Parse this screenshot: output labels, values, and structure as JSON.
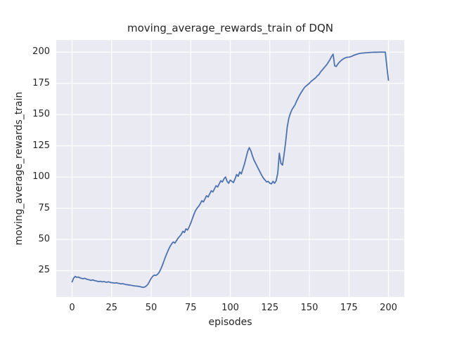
{
  "chart_data": {
    "type": "line",
    "title": "moving_average_rewards_train of DQN",
    "xlabel": "episodes",
    "ylabel": "moving_average_rewards_train",
    "x_ticks": [
      0,
      25,
      50,
      75,
      100,
      125,
      150,
      175,
      200
    ],
    "y_ticks": [
      25,
      50,
      75,
      100,
      125,
      150,
      175,
      200
    ],
    "xlim": [
      -10,
      210
    ],
    "ylim": [
      3.9,
      209.7
    ],
    "grid": true,
    "legend": "none",
    "colors": {
      "line": "#4C72B0",
      "axes_bg": "#EAEAF2",
      "grid": "#FFFFFF",
      "text": "#262626",
      "figure_bg": "#FFFFFF"
    },
    "series": [
      {
        "name": "moving_average_rewards_train",
        "x_start": 0,
        "x_step": 1,
        "values": [
          16.0,
          19.0,
          20.4,
          19.6,
          19.9,
          19.2,
          18.8,
          18.5,
          18.9,
          18.3,
          17.9,
          17.6,
          17.2,
          17.6,
          17.1,
          16.8,
          16.5,
          16.2,
          16.5,
          16.0,
          16.3,
          15.9,
          15.7,
          16.1,
          15.6,
          15.4,
          15.2,
          15.0,
          15.3,
          14.9,
          14.7,
          14.4,
          14.6,
          14.2,
          13.9,
          13.7,
          13.5,
          13.3,
          13.1,
          12.9,
          12.7,
          12.6,
          12.4,
          12.2,
          11.8,
          11.6,
          11.9,
          12.8,
          14.2,
          16.5,
          18.8,
          20.5,
          21.4,
          21.1,
          22.0,
          23.5,
          26.0,
          29.0,
          32.5,
          36.0,
          39.0,
          42.0,
          44.5,
          46.5,
          48.0,
          47.0,
          49.0,
          51.0,
          52.5,
          54.0,
          56.5,
          55.5,
          58.5,
          57.5,
          60.0,
          63.0,
          66.5,
          70.0,
          73.0,
          75.0,
          76.5,
          78.5,
          81.0,
          80.0,
          82.5,
          85.0,
          84.0,
          86.5,
          89.0,
          88.0,
          90.5,
          93.0,
          92.0,
          94.5,
          97.0,
          96.0,
          98.5,
          100.0,
          96.5,
          95.0,
          97.5,
          96.5,
          95.5,
          98.5,
          102.0,
          100.5,
          104.0,
          102.5,
          106.5,
          110.5,
          115.5,
          120.5,
          123.5,
          121.0,
          117.0,
          113.5,
          111.0,
          108.5,
          106.0,
          103.5,
          101.0,
          99.0,
          97.5,
          96.0,
          96.5,
          95.0,
          94.5,
          96.5,
          95.0,
          97.0,
          103.0,
          119.0,
          111.0,
          109.5,
          118.0,
          128.0,
          140.0,
          147.0,
          151.0,
          154.0,
          156.0,
          158.0,
          161.0,
          163.5,
          166.0,
          168.0,
          170.0,
          171.8,
          173.0,
          174.0,
          175.0,
          176.5,
          177.5,
          178.5,
          179.5,
          181.0,
          182.0,
          184.0,
          185.5,
          187.0,
          188.5,
          190.0,
          192.0,
          194.0,
          196.5,
          198.4,
          189.0,
          188.5,
          190.5,
          192.0,
          193.2,
          194.2,
          195.0,
          195.6,
          195.9,
          196.0,
          196.3,
          196.8,
          197.4,
          197.9,
          198.3,
          198.7,
          199.0,
          199.2,
          199.3,
          199.4,
          199.5,
          199.6,
          199.7,
          199.8,
          199.85,
          199.9,
          199.9,
          199.95,
          200.0,
          200.0,
          200.0,
          200.0,
          200.0,
          188.0,
          177.5
        ]
      }
    ]
  }
}
